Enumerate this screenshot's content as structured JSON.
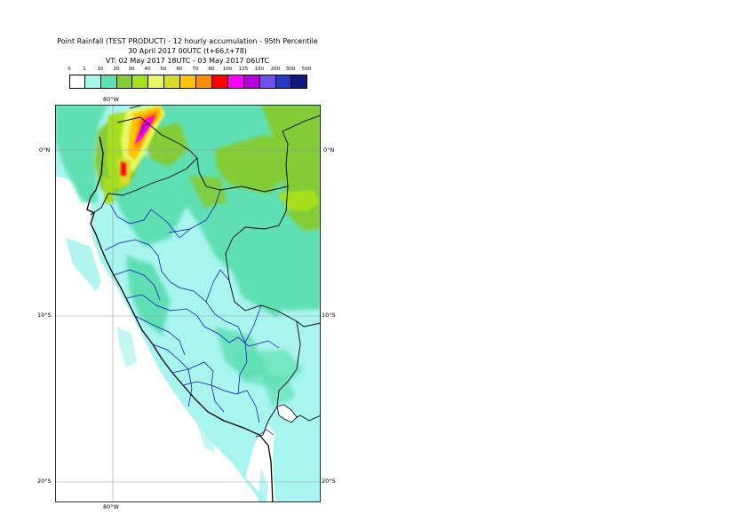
{
  "title": {
    "line1": "Point Rainfall (TEST PRODUCT) - 12 hourly accumulation - 95th Percentile",
    "line2": "30 April 2017 00UTC (t+66,t+78)",
    "line3": "VT: 02 May 2017 18UTC - 03 May 2017 06UTC"
  },
  "legend": {
    "labels": [
      "0",
      "1",
      "10",
      "20",
      "30",
      "40",
      "50",
      "60",
      "70",
      "80",
      "100",
      "125",
      "150",
      "200",
      "300",
      "500"
    ],
    "colors": [
      "#ffffff",
      "#a8f4ee",
      "#5fe0b4",
      "#84cc34",
      "#a6e01c",
      "#e6f866",
      "#d8dc28",
      "#ffc400",
      "#ff8c00",
      "#ff0000",
      "#ff00ff",
      "#b400d8",
      "#6c50f0",
      "#2838c0",
      "#101880"
    ]
  },
  "axes": {
    "top_lon": "80°W",
    "bottom_lon": "80°W",
    "lat_labels": [
      "0°N",
      "10°S",
      "20°S"
    ]
  }
}
